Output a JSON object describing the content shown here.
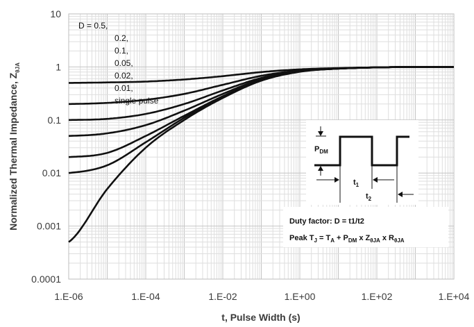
{
  "chart_data": {
    "type": "line",
    "xlabel": "t, Pulse Width (s)",
    "ylabel_main": "Normalized Thermal Impedance, Z",
    "ylabel_sub": "θJA",
    "x_scale": "log",
    "y_scale": "log",
    "xlim": [
      1e-06,
      10000.0
    ],
    "ylim": [
      0.0001,
      10
    ],
    "x_ticks": [
      "1.E-06",
      "1.E-04",
      "1.E-02",
      "1.E+00",
      "1.E+02",
      "1.E+04"
    ],
    "y_ticks": [
      "0.0001",
      "0.001",
      "0.01",
      "0.1",
      "1",
      "10"
    ],
    "grid": true,
    "legend_lines": [
      "D = 0.5,",
      "0.2,",
      "0.1,",
      "0.05,",
      "0.02,",
      "0.01,",
      "single pulse"
    ],
    "series": [
      {
        "duty": 0.5,
        "x": [
          1e-06,
          1e-05,
          0.0001,
          0.001,
          0.01,
          0.1,
          1,
          10,
          100,
          1000,
          10000.0
        ],
        "y": [
          0.5,
          0.51,
          0.53,
          0.58,
          0.67,
          0.8,
          0.9,
          0.95,
          0.98,
          1.0,
          1.0
        ]
      },
      {
        "duty": 0.2,
        "x": [
          1e-06,
          1e-05,
          0.0001,
          0.001,
          0.01,
          0.1,
          1,
          10,
          100,
          1000,
          10000.0
        ],
        "y": [
          0.2,
          0.21,
          0.24,
          0.31,
          0.46,
          0.68,
          0.86,
          0.94,
          0.98,
          1.0,
          1.0
        ]
      },
      {
        "duty": 0.1,
        "x": [
          1e-06,
          1e-05,
          0.0001,
          0.001,
          0.01,
          0.1,
          1,
          10,
          100,
          1000,
          10000.0
        ],
        "y": [
          0.1,
          0.105,
          0.13,
          0.2,
          0.36,
          0.62,
          0.84,
          0.93,
          0.98,
          1.0,
          1.0
        ]
      },
      {
        "duty": 0.05,
        "x": [
          1e-06,
          1e-05,
          0.0001,
          0.001,
          0.01,
          0.1,
          1,
          10,
          100,
          1000,
          10000.0
        ],
        "y": [
          0.05,
          0.056,
          0.08,
          0.15,
          0.31,
          0.59,
          0.83,
          0.93,
          0.98,
          1.0,
          1.0
        ]
      },
      {
        "duty": 0.02,
        "x": [
          1e-06,
          1e-05,
          0.0001,
          0.001,
          0.01,
          0.1,
          1,
          10,
          100,
          1000,
          10000.0
        ],
        "y": [
          0.02,
          0.024,
          0.05,
          0.12,
          0.28,
          0.57,
          0.82,
          0.93,
          0.98,
          1.0,
          1.0
        ]
      },
      {
        "duty": 0.01,
        "x": [
          1e-06,
          1e-05,
          0.0001,
          0.001,
          0.01,
          0.1,
          1,
          10,
          100,
          1000,
          10000.0
        ],
        "y": [
          0.01,
          0.014,
          0.038,
          0.11,
          0.27,
          0.56,
          0.82,
          0.93,
          0.98,
          1.0,
          1.0
        ]
      },
      {
        "duty": 0,
        "x": [
          1e-06,
          1e-05,
          0.0001,
          0.001,
          0.01,
          0.1,
          1,
          10,
          100,
          1000,
          10000.0
        ],
        "y": [
          0.0005,
          0.005,
          0.03,
          0.1,
          0.26,
          0.55,
          0.81,
          0.93,
          0.98,
          1.0,
          1.0
        ]
      }
    ],
    "inset": {
      "labels": {
        "pdm": "P",
        "pdm_sub": "DM",
        "t1": "t",
        "t1_sub": "1",
        "t2": "t",
        "t2_sub": "2"
      },
      "duty_text": "Duty factor: D = t1/t2",
      "peak": {
        "p1": "Peak T",
        "s1": "J",
        "p2": " = T",
        "s2": "A",
        "p3": " + P",
        "s3": "DM",
        "p4": " x Z",
        "s4": "θJA",
        "p5": " x R",
        "s5": "θJA"
      }
    }
  }
}
